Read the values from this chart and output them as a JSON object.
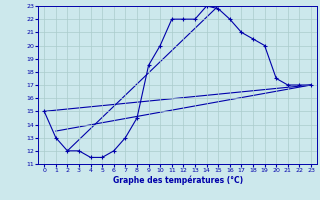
{
  "xlabel": "Graphe des températures (°C)",
  "bg_color": "#cce8ec",
  "grid_color": "#aacccc",
  "line_color": "#0000aa",
  "xlim": [
    -0.5,
    23.5
  ],
  "ylim": [
    11,
    23
  ],
  "xticks": [
    0,
    1,
    2,
    3,
    4,
    5,
    6,
    7,
    8,
    9,
    10,
    11,
    12,
    13,
    14,
    15,
    16,
    17,
    18,
    19,
    20,
    21,
    22,
    23
  ],
  "yticks": [
    11,
    12,
    13,
    14,
    15,
    16,
    17,
    18,
    19,
    20,
    21,
    22,
    23
  ],
  "series": [
    [
      0,
      15
    ],
    [
      1,
      13
    ],
    [
      2,
      12
    ],
    [
      3,
      12
    ],
    [
      4,
      11.5
    ],
    [
      5,
      11.5
    ],
    [
      6,
      12
    ],
    [
      7,
      13
    ],
    [
      8,
      14.5
    ],
    [
      9,
      18.5
    ],
    [
      10,
      20
    ],
    [
      11,
      22
    ],
    [
      12,
      22
    ],
    [
      13,
      22
    ],
    [
      14,
      23
    ],
    [
      15,
      22.8
    ],
    [
      16,
      22
    ],
    [
      17,
      21
    ],
    [
      18,
      20.5
    ],
    [
      19,
      20
    ],
    [
      20,
      17.5
    ],
    [
      21,
      17
    ],
    [
      22,
      17
    ],
    [
      23,
      17
    ]
  ],
  "line2_pts": [
    [
      0,
      15
    ],
    [
      23,
      17
    ]
  ],
  "line3_pts": [
    [
      1,
      13.5
    ],
    [
      23,
      17
    ]
  ],
  "line4_pts": [
    [
      2,
      12
    ],
    [
      15,
      23
    ]
  ]
}
